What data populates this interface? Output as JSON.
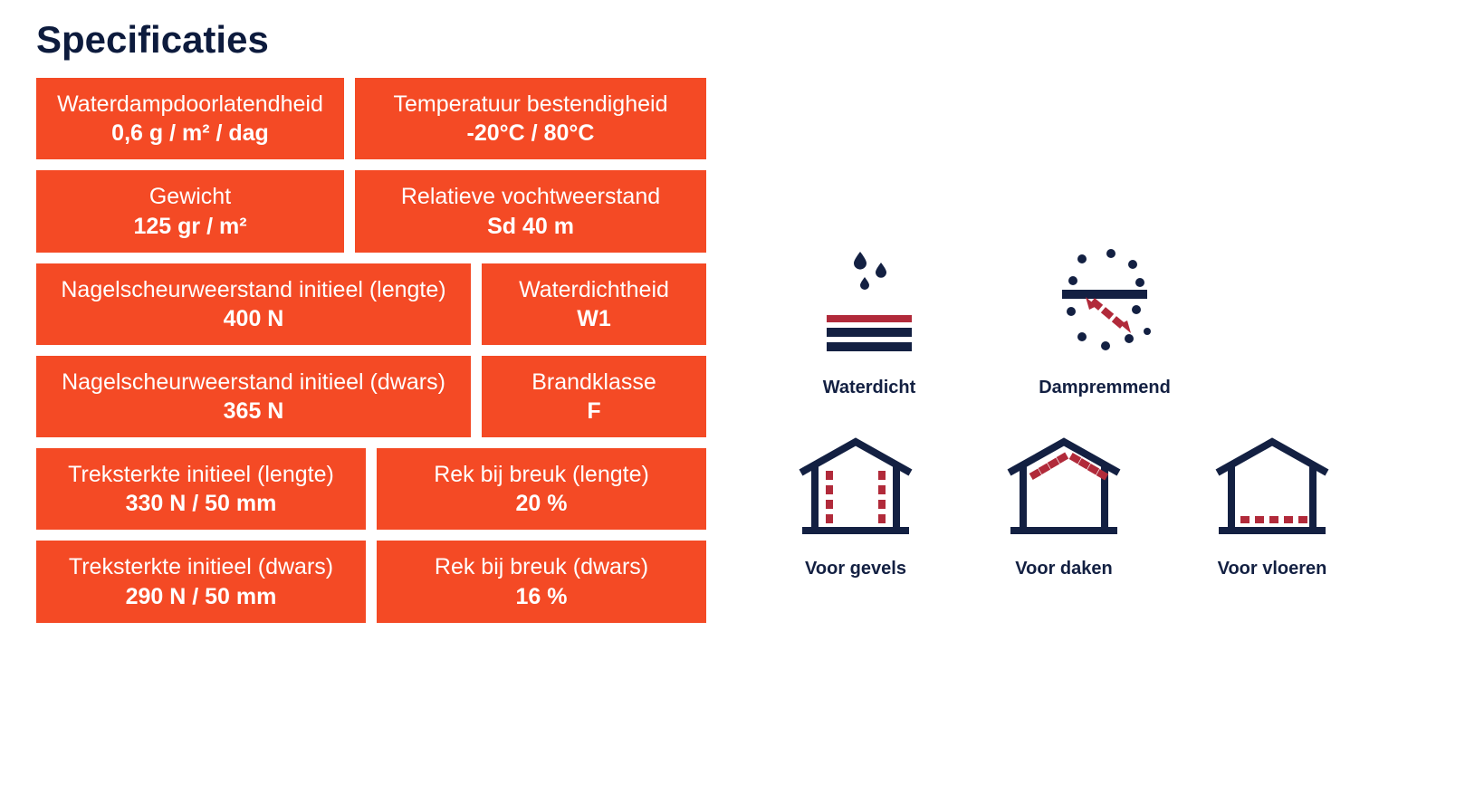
{
  "colors": {
    "heading": "#0d1b3d",
    "card_bg": "#f44a25",
    "card_text": "#ffffff",
    "icon_dark": "#132042",
    "icon_accent": "#b12a3a",
    "caption": "#132042"
  },
  "title": "Specificaties",
  "rows": [
    {
      "widths": [
        "340",
        "388"
      ],
      "cards": [
        {
          "label": "Waterdampdoorlatendheid",
          "value": "0,6 g / m² / dag"
        },
        {
          "label": "Temperatuur bestendigheid",
          "value": "-20°C / 80°C"
        }
      ]
    },
    {
      "widths": [
        "340",
        "388"
      ],
      "cards": [
        {
          "label": "Gewicht",
          "value": "125 gr / m²"
        },
        {
          "label": "Relatieve vochtweerstand",
          "value": "Sd 40 m"
        }
      ]
    },
    {
      "widths": [
        "480",
        "248"
      ],
      "cards": [
        {
          "label": "Nagelscheurweerstand initieel (lengte)",
          "value": "400 N"
        },
        {
          "label": "Waterdichtheid",
          "value": "W1"
        }
      ]
    },
    {
      "widths": [
        "480",
        "248"
      ],
      "cards": [
        {
          "label": "Nagelscheurweerstand initieel (dwars)",
          "value": "365 N"
        },
        {
          "label": "Brandklasse",
          "value": "F"
        }
      ]
    },
    {
      "widths": [
        "364",
        "364"
      ],
      "cards": [
        {
          "label": "Treksterkte initieel (lengte)",
          "value": "330 N / 50 mm"
        },
        {
          "label": "Rek bij breuk (lengte)",
          "value": "20 %"
        }
      ]
    },
    {
      "widths": [
        "364",
        "364"
      ],
      "cards": [
        {
          "label": "Treksterkte initieel (dwars)",
          "value": "290 N / 50 mm"
        },
        {
          "label": "Rek bij breuk (dwars)",
          "value": "16 %"
        }
      ]
    }
  ],
  "features_top": [
    {
      "key": "waterdicht",
      "caption": "Waterdicht"
    },
    {
      "key": "dampremmend",
      "caption": "Dampremmend"
    }
  ],
  "features_bottom": [
    {
      "key": "gevels",
      "caption": "Voor gevels"
    },
    {
      "key": "daken",
      "caption": "Voor daken"
    },
    {
      "key": "vloeren",
      "caption": "Voor vloeren"
    }
  ]
}
